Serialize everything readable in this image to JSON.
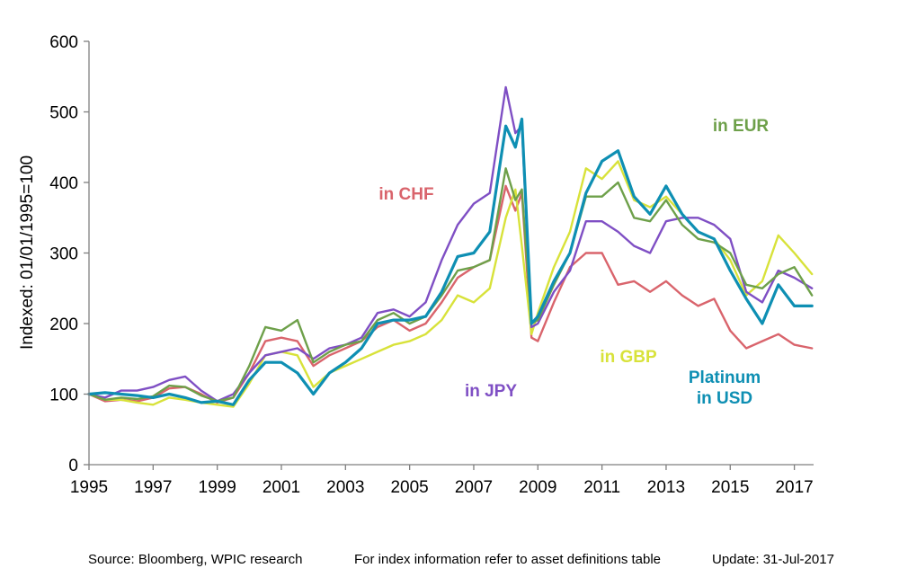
{
  "chart_data": {
    "type": "line",
    "title": "",
    "ylabel": "Indexed: 01/01/1995=100",
    "xlabel": "",
    "xlim": [
      1995,
      2017.6
    ],
    "ylim": [
      0,
      600
    ],
    "yticks": [
      0,
      100,
      200,
      300,
      400,
      500,
      600
    ],
    "xticks": [
      1995,
      1997,
      1999,
      2001,
      2003,
      2005,
      2007,
      2009,
      2011,
      2013,
      2015,
      2017
    ],
    "grid": false,
    "legend": "inline-labels",
    "series": [
      {
        "key": "chf",
        "label_lines": [
          "in CHF"
        ],
        "color": "#d9646c",
        "points": [
          [
            1995,
            100
          ],
          [
            1995.5,
            90
          ],
          [
            1996,
            92
          ],
          [
            1996.5,
            90
          ],
          [
            1997,
            95
          ],
          [
            1997.5,
            108
          ],
          [
            1998,
            110
          ],
          [
            1998.5,
            100
          ],
          [
            1999,
            88
          ],
          [
            1999.5,
            95
          ],
          [
            2000,
            130
          ],
          [
            2000.5,
            175
          ],
          [
            2001,
            180
          ],
          [
            2001.5,
            175
          ],
          [
            2002,
            140
          ],
          [
            2002.5,
            155
          ],
          [
            2003,
            165
          ],
          [
            2003.5,
            175
          ],
          [
            2004,
            195
          ],
          [
            2004.5,
            205
          ],
          [
            2005,
            190
          ],
          [
            2005.5,
            200
          ],
          [
            2006,
            230
          ],
          [
            2006.5,
            265
          ],
          [
            2007,
            280
          ],
          [
            2007.5,
            290
          ],
          [
            2008,
            395
          ],
          [
            2008.3,
            360
          ],
          [
            2008.5,
            385
          ],
          [
            2008.8,
            180
          ],
          [
            2009,
            175
          ],
          [
            2009.5,
            230
          ],
          [
            2010,
            280
          ],
          [
            2010.5,
            300
          ],
          [
            2011,
            300
          ],
          [
            2011.5,
            255
          ],
          [
            2012,
            260
          ],
          [
            2012.5,
            245
          ],
          [
            2013,
            260
          ],
          [
            2013.5,
            240
          ],
          [
            2014,
            225
          ],
          [
            2014.5,
            235
          ],
          [
            2015,
            190
          ],
          [
            2015.5,
            165
          ],
          [
            2016,
            175
          ],
          [
            2016.5,
            185
          ],
          [
            2017,
            170
          ],
          [
            2017.55,
            165
          ]
        ]
      },
      {
        "key": "eur",
        "label_lines": [
          "in EUR"
        ],
        "color": "#6ea04a",
        "points": [
          [
            1995,
            100
          ],
          [
            1995.5,
            92
          ],
          [
            1996,
            95
          ],
          [
            1996.5,
            93
          ],
          [
            1997,
            97
          ],
          [
            1997.5,
            112
          ],
          [
            1998,
            110
          ],
          [
            1998.5,
            98
          ],
          [
            1999,
            90
          ],
          [
            1999.5,
            95
          ],
          [
            2000,
            140
          ],
          [
            2000.5,
            195
          ],
          [
            2001,
            190
          ],
          [
            2001.5,
            205
          ],
          [
            2002,
            145
          ],
          [
            2002.5,
            160
          ],
          [
            2003,
            170
          ],
          [
            2003.5,
            175
          ],
          [
            2004,
            205
          ],
          [
            2004.5,
            215
          ],
          [
            2005,
            200
          ],
          [
            2005.5,
            210
          ],
          [
            2006,
            240
          ],
          [
            2006.5,
            275
          ],
          [
            2007,
            280
          ],
          [
            2007.5,
            290
          ],
          [
            2008,
            420
          ],
          [
            2008.3,
            375
          ],
          [
            2008.5,
            390
          ],
          [
            2008.8,
            200
          ],
          [
            2009,
            205
          ],
          [
            2009.5,
            255
          ],
          [
            2010,
            300
          ],
          [
            2010.5,
            380
          ],
          [
            2011,
            380
          ],
          [
            2011.5,
            400
          ],
          [
            2012,
            350
          ],
          [
            2012.5,
            345
          ],
          [
            2013,
            375
          ],
          [
            2013.5,
            340
          ],
          [
            2014,
            320
          ],
          [
            2014.5,
            315
          ],
          [
            2015,
            300
          ],
          [
            2015.5,
            255
          ],
          [
            2016,
            250
          ],
          [
            2016.5,
            270
          ],
          [
            2017,
            280
          ],
          [
            2017.55,
            240
          ]
        ]
      },
      {
        "key": "gbp",
        "label_lines": [
          "in GBP"
        ],
        "color": "#d8e23a",
        "points": [
          [
            1995,
            100
          ],
          [
            1995.5,
            92
          ],
          [
            1996,
            92
          ],
          [
            1996.5,
            88
          ],
          [
            1997,
            85
          ],
          [
            1997.5,
            95
          ],
          [
            1998,
            92
          ],
          [
            1998.5,
            88
          ],
          [
            1999,
            85
          ],
          [
            1999.5,
            82
          ],
          [
            2000,
            115
          ],
          [
            2000.5,
            155
          ],
          [
            2001,
            160
          ],
          [
            2001.5,
            155
          ],
          [
            2002,
            110
          ],
          [
            2002.5,
            130
          ],
          [
            2003,
            140
          ],
          [
            2003.5,
            150
          ],
          [
            2004,
            160
          ],
          [
            2004.5,
            170
          ],
          [
            2005,
            175
          ],
          [
            2005.5,
            185
          ],
          [
            2006,
            205
          ],
          [
            2006.5,
            240
          ],
          [
            2007,
            230
          ],
          [
            2007.5,
            250
          ],
          [
            2008,
            350
          ],
          [
            2008.3,
            390
          ],
          [
            2008.5,
            310
          ],
          [
            2008.8,
            185
          ],
          [
            2009,
            215
          ],
          [
            2009.5,
            280
          ],
          [
            2010,
            330
          ],
          [
            2010.5,
            420
          ],
          [
            2011,
            405
          ],
          [
            2011.5,
            430
          ],
          [
            2012,
            375
          ],
          [
            2012.5,
            365
          ],
          [
            2013,
            380
          ],
          [
            2013.5,
            355
          ],
          [
            2014,
            330
          ],
          [
            2014.5,
            320
          ],
          [
            2015,
            290
          ],
          [
            2015.5,
            240
          ],
          [
            2016,
            260
          ],
          [
            2016.5,
            325
          ],
          [
            2017,
            300
          ],
          [
            2017.55,
            270
          ]
        ]
      },
      {
        "key": "jpy",
        "label_lines": [
          "in JPY"
        ],
        "color": "#7f4fc4",
        "points": [
          [
            1995,
            100
          ],
          [
            1995.5,
            95
          ],
          [
            1996,
            105
          ],
          [
            1996.5,
            105
          ],
          [
            1997,
            110
          ],
          [
            1997.5,
            120
          ],
          [
            1998,
            125
          ],
          [
            1998.5,
            105
          ],
          [
            1999,
            90
          ],
          [
            1999.5,
            100
          ],
          [
            2000,
            130
          ],
          [
            2000.5,
            155
          ],
          [
            2001,
            160
          ],
          [
            2001.5,
            165
          ],
          [
            2002,
            150
          ],
          [
            2002.5,
            165
          ],
          [
            2003,
            170
          ],
          [
            2003.5,
            180
          ],
          [
            2004,
            215
          ],
          [
            2004.5,
            220
          ],
          [
            2005,
            210
          ],
          [
            2005.5,
            230
          ],
          [
            2006,
            290
          ],
          [
            2006.5,
            340
          ],
          [
            2007,
            370
          ],
          [
            2007.5,
            385
          ],
          [
            2008,
            535
          ],
          [
            2008.3,
            470
          ],
          [
            2008.5,
            480
          ],
          [
            2008.8,
            195
          ],
          [
            2009,
            200
          ],
          [
            2009.5,
            245
          ],
          [
            2010,
            275
          ],
          [
            2010.5,
            345
          ],
          [
            2011,
            345
          ],
          [
            2011.5,
            330
          ],
          [
            2012,
            310
          ],
          [
            2012.5,
            300
          ],
          [
            2013,
            345
          ],
          [
            2013.5,
            350
          ],
          [
            2014,
            350
          ],
          [
            2014.5,
            340
          ],
          [
            2015,
            320
          ],
          [
            2015.5,
            245
          ],
          [
            2016,
            230
          ],
          [
            2016.5,
            275
          ],
          [
            2017,
            265
          ],
          [
            2017.55,
            250
          ]
        ]
      },
      {
        "key": "usd",
        "label_lines": [
          "Platinum",
          "in USD"
        ],
        "color": "#0e8fb3",
        "points": [
          [
            1995,
            100
          ],
          [
            1995.5,
            102
          ],
          [
            1996,
            100
          ],
          [
            1996.5,
            98
          ],
          [
            1997,
            95
          ],
          [
            1997.5,
            100
          ],
          [
            1998,
            95
          ],
          [
            1998.5,
            88
          ],
          [
            1999,
            90
          ],
          [
            1999.5,
            85
          ],
          [
            2000,
            120
          ],
          [
            2000.5,
            145
          ],
          [
            2001,
            145
          ],
          [
            2001.5,
            130
          ],
          [
            2002,
            100
          ],
          [
            2002.5,
            130
          ],
          [
            2003,
            145
          ],
          [
            2003.5,
            165
          ],
          [
            2004,
            200
          ],
          [
            2004.5,
            205
          ],
          [
            2005,
            205
          ],
          [
            2005.5,
            210
          ],
          [
            2006,
            245
          ],
          [
            2006.5,
            295
          ],
          [
            2007,
            300
          ],
          [
            2007.5,
            330
          ],
          [
            2008,
            480
          ],
          [
            2008.3,
            450
          ],
          [
            2008.5,
            490
          ],
          [
            2008.8,
            200
          ],
          [
            2009,
            210
          ],
          [
            2009.5,
            260
          ],
          [
            2010,
            300
          ],
          [
            2010.5,
            385
          ],
          [
            2011,
            430
          ],
          [
            2011.5,
            445
          ],
          [
            2012,
            380
          ],
          [
            2012.5,
            355
          ],
          [
            2013,
            395
          ],
          [
            2013.5,
            355
          ],
          [
            2014,
            330
          ],
          [
            2014.5,
            320
          ],
          [
            2015,
            275
          ],
          [
            2015.5,
            235
          ],
          [
            2016,
            200
          ],
          [
            2016.5,
            255
          ],
          [
            2017,
            225
          ],
          [
            2017.55,
            225
          ]
        ]
      }
    ]
  },
  "footer": {
    "source": "Source: Bloomberg, WPIC research",
    "note": "For index information refer to asset definitions table",
    "update": "Update: 31-Jul-2017"
  }
}
